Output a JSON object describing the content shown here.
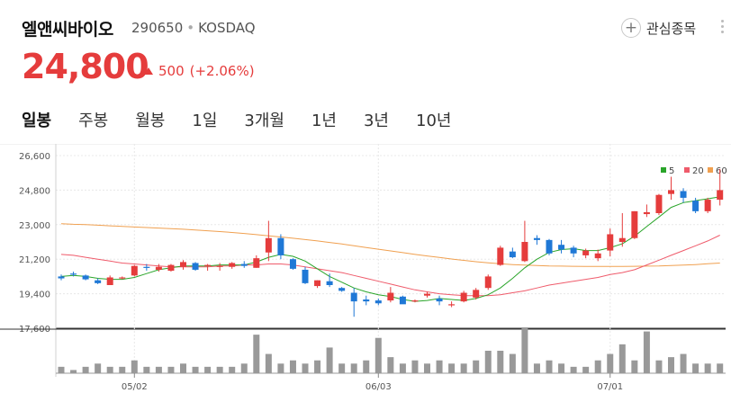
{
  "stock": {
    "name": "엘앤씨바이오",
    "code": "290650",
    "market": "KOSDAQ",
    "price": "24,800",
    "change": "500",
    "change_pct": "(+2.06%)"
  },
  "watchlist": {
    "label": "관심종목",
    "icon": "plus-icon"
  },
  "tabs": [
    {
      "label": "일봉",
      "active": true
    },
    {
      "label": "주봉",
      "active": false
    },
    {
      "label": "월봉",
      "active": false
    },
    {
      "label": "1일",
      "active": false
    },
    {
      "label": "3개월",
      "active": false
    },
    {
      "label": "1년",
      "active": false
    },
    {
      "label": "3년",
      "active": false
    },
    {
      "label": "10년",
      "active": false
    }
  ],
  "colors": {
    "up": "#e53c3c",
    "down": "#1f78d6",
    "ma5": "#2aa52a",
    "ma20": "#ef5b6b",
    "ma60": "#f0a050",
    "volume": "#999999"
  },
  "chart_data": {
    "type": "candlestick",
    "y_ticks": [
      "26,600",
      "24,800",
      "23,000",
      "21,200",
      "19,400",
      "17,600"
    ],
    "ylim": [
      17600,
      26600
    ],
    "x_labels": [
      {
        "label": "05/02",
        "index": 6
      },
      {
        "label": "06/03",
        "index": 26
      },
      {
        "label": "07/01",
        "index": 45
      }
    ],
    "legend": [
      {
        "label": "5",
        "color": "#2aa52a"
      },
      {
        "label": "20",
        "color": "#ef5b6b"
      },
      {
        "label": "60",
        "color": "#f0a050"
      }
    ],
    "candles": [
      [
        20300,
        20400,
        20100,
        20200
      ],
      [
        20450,
        20550,
        20300,
        20400
      ],
      [
        20350,
        20400,
        20100,
        20150
      ],
      [
        20100,
        20200,
        19900,
        19950
      ],
      [
        19850,
        20350,
        19850,
        20250
      ],
      [
        20200,
        20300,
        20150,
        20250
      ],
      [
        20350,
        20900,
        20300,
        20850
      ],
      [
        20800,
        20950,
        20600,
        20750
      ],
      [
        20650,
        20950,
        20550,
        20800
      ],
      [
        20600,
        20950,
        20550,
        20900
      ],
      [
        20800,
        21150,
        20650,
        21050
      ],
      [
        21000,
        21050,
        20600,
        20650
      ],
      [
        20850,
        20950,
        20600,
        20900
      ],
      [
        20850,
        21000,
        20600,
        20850
      ],
      [
        20800,
        21050,
        20700,
        21000
      ],
      [
        20950,
        21100,
        20750,
        20850
      ],
      [
        20750,
        21400,
        20750,
        21250
      ],
      [
        21550,
        23200,
        21100,
        22300
      ],
      [
        22300,
        22500,
        21200,
        21400
      ],
      [
        21200,
        21250,
        20650,
        20700
      ],
      [
        20650,
        20800,
        19900,
        19950
      ],
      [
        19800,
        20100,
        19700,
        20100
      ],
      [
        20050,
        20450,
        19750,
        19850
      ],
      [
        19700,
        19750,
        19500,
        19550
      ],
      [
        19450,
        19700,
        18200,
        19000
      ],
      [
        19100,
        19300,
        18800,
        19000
      ],
      [
        19050,
        19150,
        18800,
        18900
      ],
      [
        19050,
        19750,
        18950,
        19450
      ],
      [
        19250,
        19300,
        18900,
        18850
      ],
      [
        19000,
        19100,
        18950,
        19050
      ],
      [
        19300,
        19500,
        19200,
        19400
      ],
      [
        19150,
        19300,
        18800,
        19000
      ],
      [
        18800,
        19000,
        18700,
        18850
      ],
      [
        19000,
        19550,
        18950,
        19450
      ],
      [
        19200,
        19700,
        19100,
        19600
      ],
      [
        19700,
        20400,
        19600,
        20300
      ],
      [
        20900,
        21900,
        20850,
        21800
      ],
      [
        21600,
        21800,
        21250,
        21300
      ],
      [
        21100,
        23200,
        21050,
        22100
      ],
      [
        22300,
        22450,
        21950,
        22200
      ],
      [
        22200,
        22250,
        21400,
        21500
      ],
      [
        21950,
        22200,
        21500,
        21700
      ],
      [
        21800,
        21900,
        21300,
        21500
      ],
      [
        21400,
        21750,
        21250,
        21650
      ],
      [
        21250,
        21700,
        21100,
        21500
      ],
      [
        21650,
        22800,
        21350,
        22500
      ],
      [
        22100,
        23600,
        21850,
        22300
      ],
      [
        22300,
        23700,
        22250,
        23700
      ],
      [
        23550,
        24050,
        23400,
        23650
      ],
      [
        23600,
        24600,
        23500,
        24550
      ],
      [
        24600,
        25500,
        24300,
        24800
      ],
      [
        24750,
        24900,
        24150,
        24400
      ],
      [
        24250,
        24400,
        23600,
        23700
      ],
      [
        23700,
        24400,
        23600,
        24300
      ],
      [
        24300,
        25900,
        24000,
        24800
      ]
    ],
    "ma5": [
      20300,
      20350,
      20300,
      20200,
      20150,
      20150,
      20250,
      20450,
      20650,
      20750,
      20850,
      20850,
      20850,
      20900,
      20900,
      20900,
      21050,
      21300,
      21450,
      21350,
      21100,
      20700,
      20300,
      20000,
      19700,
      19500,
      19350,
      19250,
      19100,
      19000,
      19050,
      19150,
      19100,
      19050,
      19150,
      19350,
      19700,
      20200,
      20750,
      21200,
      21550,
      21700,
      21750,
      21650,
      21650,
      21800,
      22000,
      22400,
      22900,
      23400,
      23900,
      24150,
      24250,
      24350,
      24450
    ],
    "ma20": [
      21450,
      21400,
      21300,
      21200,
      21100,
      21000,
      20950,
      20900,
      20850,
      20800,
      20800,
      20800,
      20800,
      20850,
      20850,
      20900,
      20900,
      20950,
      20950,
      20900,
      20800,
      20700,
      20600,
      20500,
      20350,
      20200,
      20050,
      19900,
      19750,
      19600,
      19500,
      19400,
      19350,
      19300,
      19300,
      19300,
      19350,
      19450,
      19550,
      19700,
      19850,
      19950,
      20050,
      20150,
      20250,
      20400,
      20500,
      20650,
      20900,
      21150,
      21400,
      21650,
      21900,
      22150,
      22450
    ],
    "ma60": [
      23050,
      23020,
      23000,
      22970,
      22940,
      22910,
      22880,
      22850,
      22820,
      22790,
      22760,
      22720,
      22680,
      22640,
      22590,
      22540,
      22480,
      22420,
      22360,
      22290,
      22220,
      22150,
      22070,
      21990,
      21900,
      21810,
      21720,
      21630,
      21540,
      21450,
      21370,
      21290,
      21210,
      21140,
      21070,
      21010,
      20960,
      20920,
      20890,
      20870,
      20850,
      20840,
      20830,
      20820,
      20820,
      20820,
      20820,
      20830,
      20840,
      20850,
      20870,
      20890,
      20920,
      20960,
      21000
    ],
    "volume": [
      2,
      1,
      2,
      3,
      2,
      2,
      4,
      2,
      2,
      2,
      3,
      2,
      2,
      2,
      2,
      3,
      12,
      6,
      3,
      4,
      3,
      4,
      8,
      3,
      3,
      4,
      11,
      5,
      3,
      4,
      3,
      4,
      3,
      3,
      4,
      7,
      7,
      6,
      14,
      3,
      4,
      3,
      2,
      2,
      4,
      6,
      9,
      4,
      13,
      4,
      5,
      6,
      3,
      3,
      3
    ]
  }
}
